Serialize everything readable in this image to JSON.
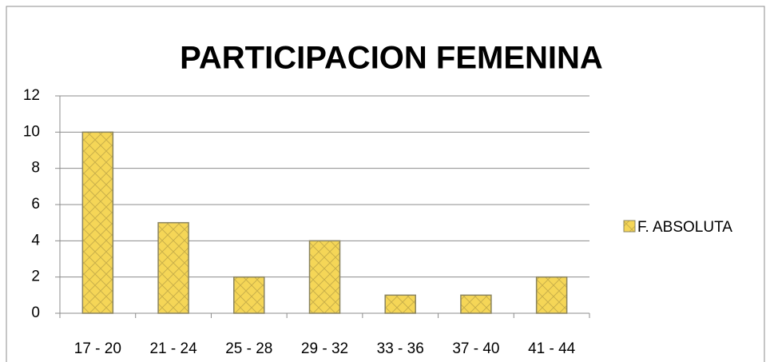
{
  "chart_data": {
    "type": "bar",
    "title": "PARTICIPACION FEMENINA",
    "categories": [
      "17 - 20",
      "21 - 24",
      "25 - 28",
      "29 - 32",
      "33 - 36",
      "37 - 40",
      "41 - 44"
    ],
    "series": [
      {
        "name": "F. ABSOLUTA",
        "color": "#f5d657",
        "values": [
          10,
          5,
          2,
          4,
          1,
          1,
          2
        ]
      }
    ],
    "ylim": [
      0,
      12
    ],
    "yticks": [
      0,
      2,
      4,
      6,
      8,
      10,
      12
    ],
    "grid": true,
    "legend": "right"
  }
}
